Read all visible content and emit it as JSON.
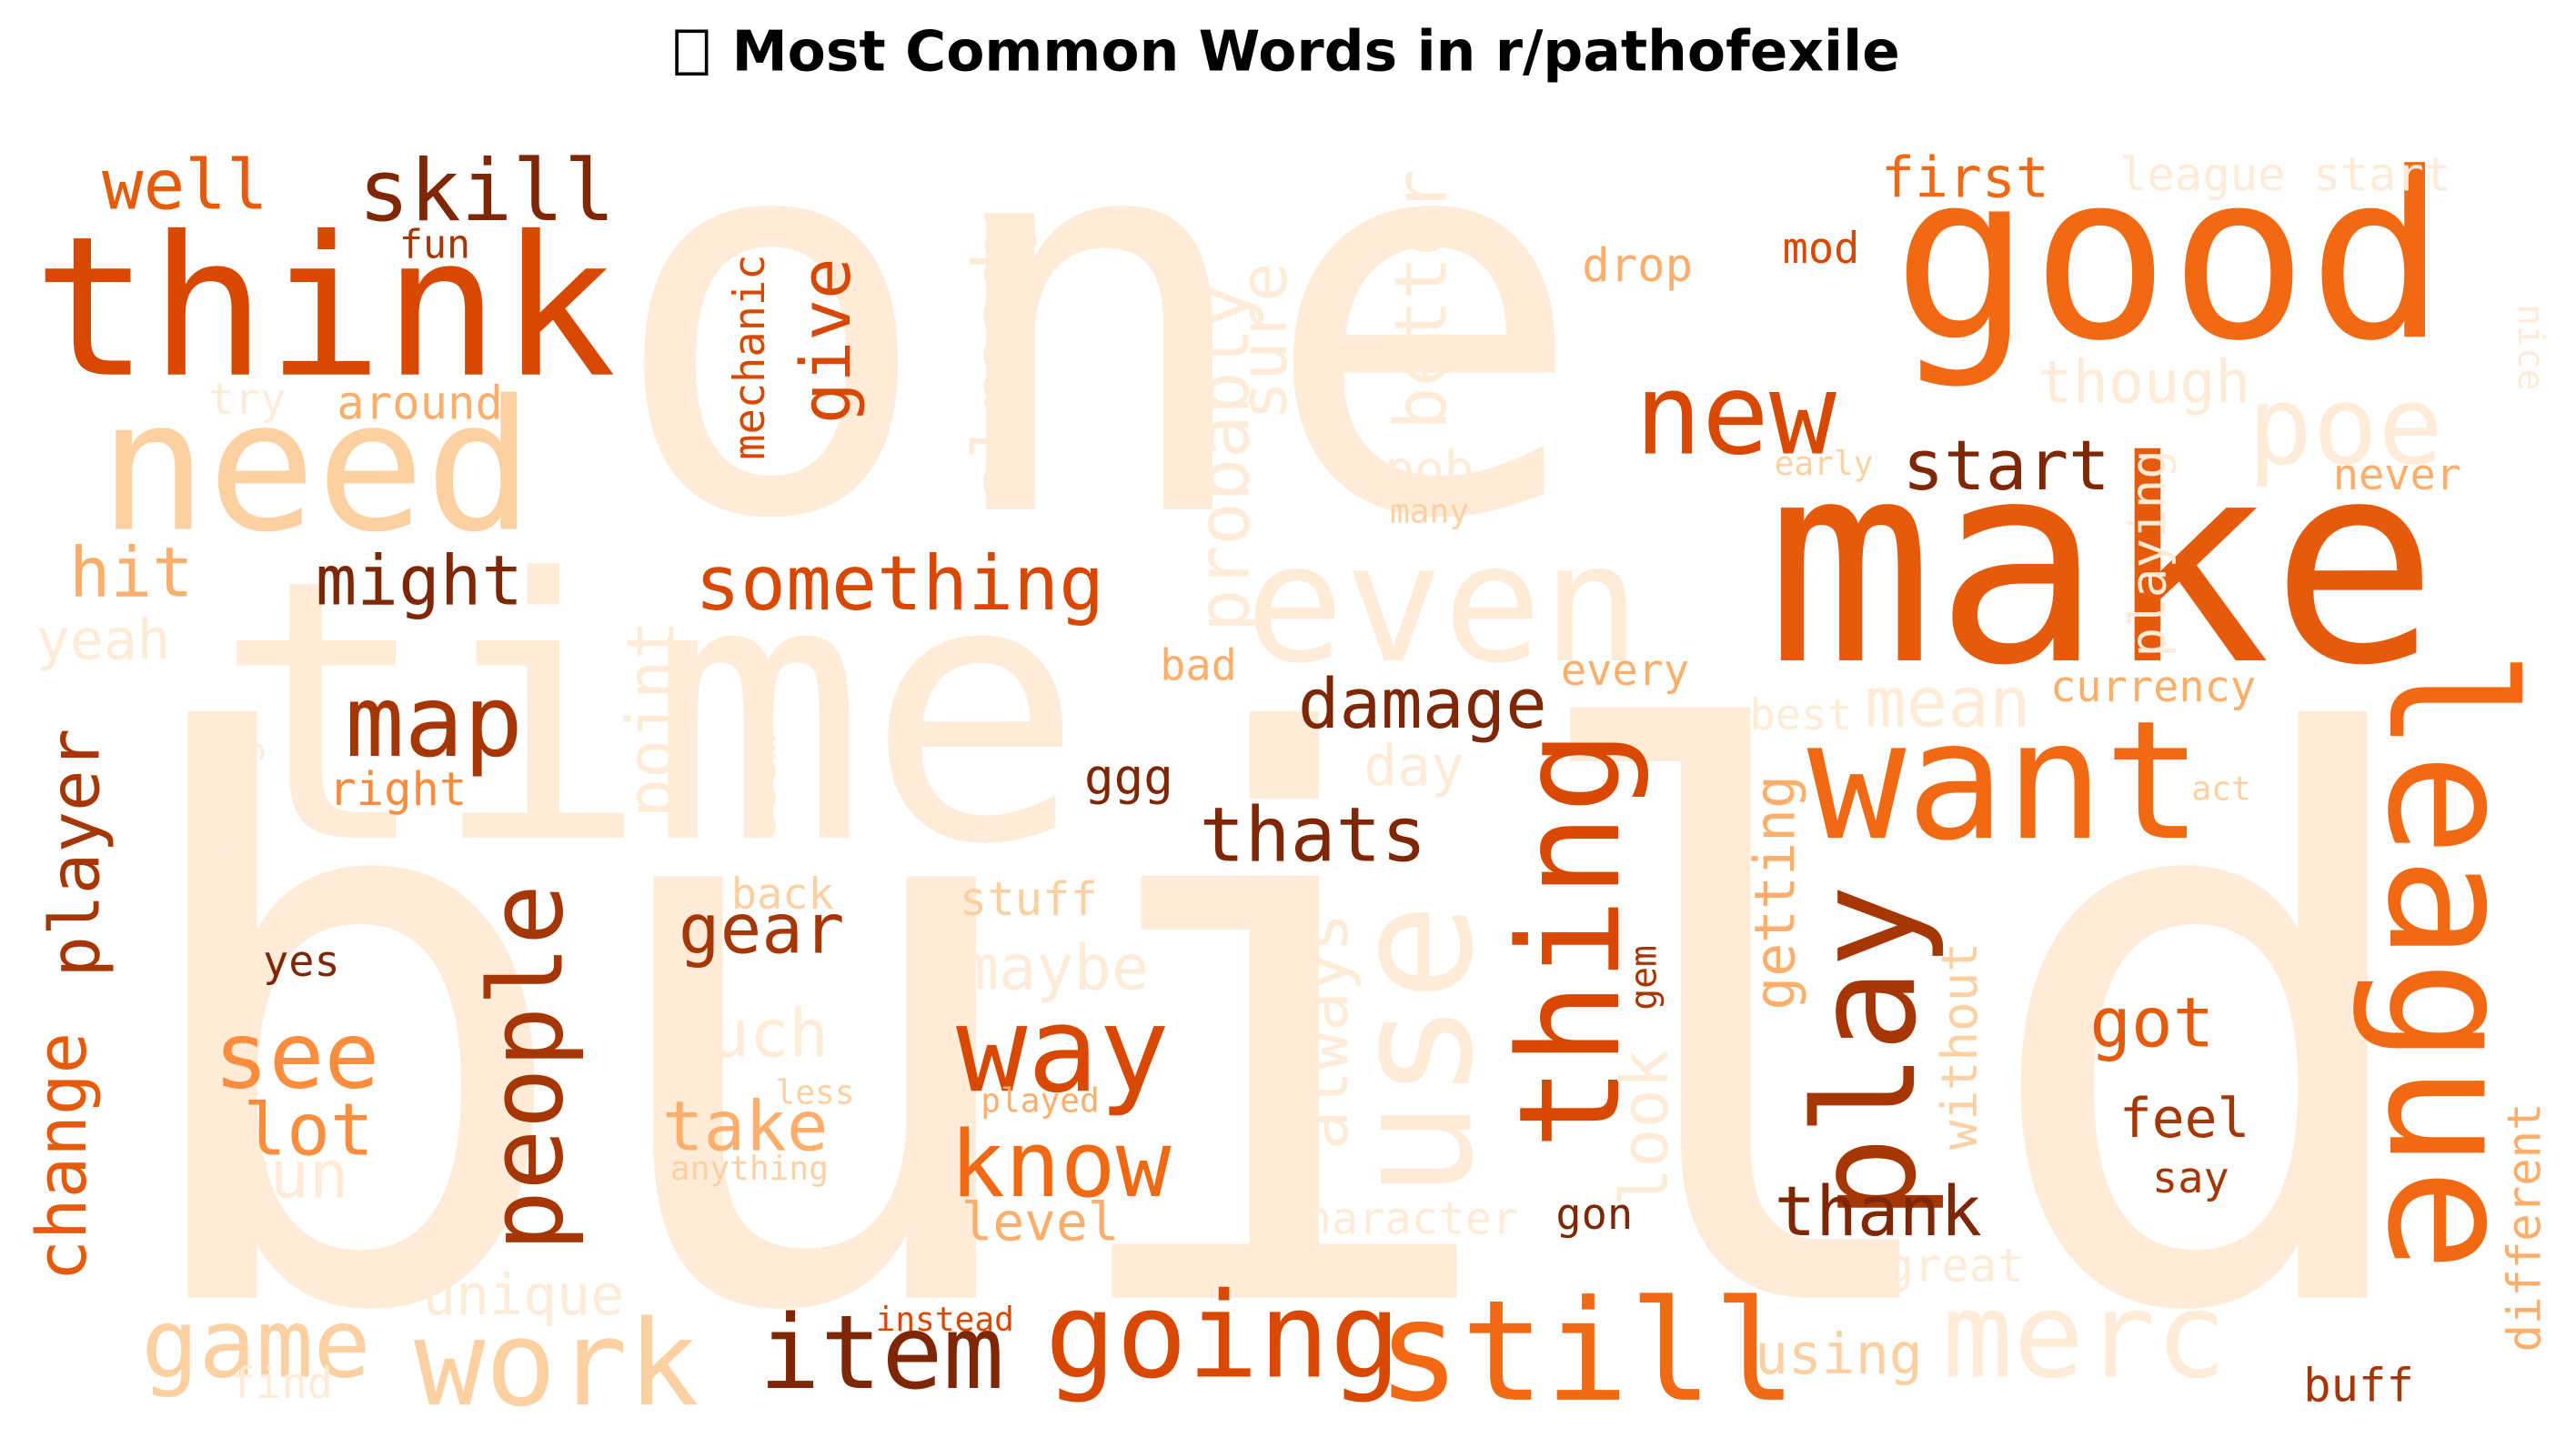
{
  "title": "Most Common Words in r/pathofexile",
  "title_icon": "missing-glyph-icon",
  "colors": {
    "dark_brown": "#7f2704",
    "brown": "#a63603",
    "dark_orange": "#d94801",
    "orange": "#e55a0b",
    "mid_orange": "#f16913",
    "light_orange": "#fd8d3c",
    "peach": "#fdae6b",
    "pale_peach": "#fdd0a2",
    "cream": "#feecd9"
  },
  "words": [
    {
      "text": "one",
      "color": "#feecd9",
      "rot": 0
    },
    {
      "text": "build",
      "color": "#feecd9",
      "rot": 0
    },
    {
      "text": "time",
      "color": "#feecd9",
      "rot": 0
    },
    {
      "text": "make",
      "color": "#e55a0b",
      "rot": 0
    },
    {
      "text": "good",
      "color": "#f16913",
      "rot": 0
    },
    {
      "text": "think",
      "color": "#d94801",
      "rot": 0
    },
    {
      "text": "need",
      "color": "#fdd0a2",
      "rot": 0
    },
    {
      "text": "even",
      "color": "#feecd9",
      "rot": 0
    },
    {
      "text": "use",
      "color": "#feecd9",
      "rot": -90
    },
    {
      "text": "want",
      "color": "#f16913",
      "rot": 0
    },
    {
      "text": "league",
      "color": "#f16913",
      "rot": 90
    },
    {
      "text": "still",
      "color": "#f16913",
      "rot": 0
    },
    {
      "text": "play",
      "color": "#a63603",
      "rot": -90
    },
    {
      "text": "thing",
      "color": "#d94801",
      "rot": -90
    },
    {
      "text": "going",
      "color": "#d94801",
      "rot": 0
    },
    {
      "text": "work",
      "color": "#fdd0a2",
      "rot": 0
    },
    {
      "text": "merc",
      "color": "#feecd9",
      "rot": 0
    },
    {
      "text": "way",
      "color": "#d94801",
      "rot": 0
    },
    {
      "text": "new",
      "color": "#d94801",
      "rot": 0
    },
    {
      "text": "poe",
      "color": "#feecd9",
      "rot": 0
    },
    {
      "text": "people",
      "color": "#a63603",
      "rot": -90
    },
    {
      "text": "item",
      "color": "#7f2704",
      "rot": 0
    },
    {
      "text": "map",
      "color": "#a63603",
      "rot": 0
    },
    {
      "text": "skill",
      "color": "#7f2704",
      "rot": 0
    },
    {
      "text": "game",
      "color": "#fdd0a2",
      "rot": 0
    },
    {
      "text": "know",
      "color": "#f16913",
      "rot": 0
    },
    {
      "text": "see",
      "color": "#fd8d3c",
      "rot": 0
    },
    {
      "text": "something",
      "color": "#d94801",
      "rot": 0
    },
    {
      "text": "thats",
      "color": "#7f2704",
      "rot": 0
    },
    {
      "text": "damage",
      "color": "#7f2704",
      "rot": 0
    },
    {
      "text": "start",
      "color": "#7f2704",
      "rot": 0
    },
    {
      "text": "thank",
      "color": "#7f2704",
      "rot": 0
    },
    {
      "text": "might",
      "color": "#7f2704",
      "rot": 0
    },
    {
      "text": "lot",
      "color": "#fd8d3c",
      "rot": 0
    },
    {
      "text": "hit",
      "color": "#fdae6b",
      "rot": 0
    },
    {
      "text": "well",
      "color": "#e55a0b",
      "rot": 0
    },
    {
      "text": "gear",
      "color": "#a63603",
      "rot": 0
    },
    {
      "text": "take",
      "color": "#fdae6b",
      "rot": 0
    },
    {
      "text": "got",
      "color": "#e55a0b",
      "rot": 0
    },
    {
      "text": "give",
      "color": "#d94801",
      "rot": -90
    },
    {
      "text": "player",
      "color": "#a63603",
      "rot": -90
    },
    {
      "text": "change",
      "color": "#e55a0b",
      "rot": -90
    },
    {
      "text": "probably",
      "color": "#feecd9",
      "rot": -90
    },
    {
      "text": "better",
      "color": "#feecd9",
      "rot": -90
    },
    {
      "text": "already",
      "color": "#feecd9",
      "rot": -90
    },
    {
      "text": "sure",
      "color": "#feecd9",
      "rot": -90
    },
    {
      "text": "point",
      "color": "#feecd9",
      "rot": -90
    },
    {
      "text": "always",
      "color": "#feecd9",
      "rot": -90
    },
    {
      "text": "much",
      "color": "#feecd9",
      "rot": 0
    },
    {
      "text": "maybe",
      "color": "#feecd9",
      "rot": 0
    },
    {
      "text": "run",
      "color": "#feecd9",
      "rot": 0
    },
    {
      "text": "level",
      "color": "#fdae6b",
      "rot": 0
    },
    {
      "text": "feel",
      "color": "#a63603",
      "rot": 0
    },
    {
      "text": "mean",
      "color": "#feecd9",
      "rot": 0
    },
    {
      "text": "first",
      "color": "#f16913",
      "rot": 0
    },
    {
      "text": "though",
      "color": "#feecd9",
      "rot": 0
    },
    {
      "text": "using",
      "color": "#fdd0a2",
      "rot": 0
    },
    {
      "text": "unique",
      "color": "#feecd9",
      "rot": 0
    },
    {
      "text": "character",
      "color": "#feecd9",
      "rot": 0
    },
    {
      "text": "look",
      "color": "#feecd9",
      "rot": -90
    },
    {
      "text": "getting",
      "color": "#fdae6b",
      "rot": -90
    },
    {
      "text": "without",
      "color": "#fdd0a2",
      "rot": -90
    },
    {
      "text": "different",
      "color": "#fdae6b",
      "rot": -90
    },
    {
      "text": "mechanic",
      "color": "#d94801",
      "rot": -90
    },
    {
      "text": "seem",
      "color": "#feecd9",
      "rot": -90
    },
    {
      "text": "enough",
      "color": "#feecd9",
      "rot": -90
    },
    {
      "text": "playing",
      "color": "#feecd9",
      "rot": -90
    },
    {
      "text": "nice",
      "color": "#feecd9",
      "rot": 90
    },
    {
      "text": "gem",
      "color": "#a63603",
      "rot": -90
    },
    {
      "text": "league start",
      "color": "#feecd9",
      "rot": 0
    },
    {
      "text": "currency",
      "color": "#fdae6b",
      "rot": 0
    },
    {
      "text": "yeah",
      "color": "#feecd9",
      "rot": 0
    },
    {
      "text": "around",
      "color": "#fdae6b",
      "rot": 0
    },
    {
      "text": "fun",
      "color": "#a63603",
      "rot": 0
    },
    {
      "text": "drop",
      "color": "#fdae6b",
      "rot": 0
    },
    {
      "text": "mod",
      "color": "#d94801",
      "rot": 0
    },
    {
      "text": "never",
      "color": "#fdae6b",
      "rot": 0
    },
    {
      "text": "try",
      "color": "#feecd9",
      "rot": 0
    },
    {
      "text": "pob",
      "color": "#feecd9",
      "rot": 0
    },
    {
      "text": "early",
      "color": "#fdd0a2",
      "rot": 0
    },
    {
      "text": "many",
      "color": "#fdd0a2",
      "rot": 0
    },
    {
      "text": "bad",
      "color": "#fdae6b",
      "rot": 0
    },
    {
      "text": "every",
      "color": "#fdae6b",
      "rot": 0
    },
    {
      "text": "best",
      "color": "#feecd9",
      "rot": 0
    },
    {
      "text": "day",
      "color": "#feecd9",
      "rot": 0
    },
    {
      "text": "ggg",
      "color": "#7f2704",
      "rot": 0
    },
    {
      "text": "right",
      "color": "#fd8d3c",
      "rot": 0
    },
    {
      "text": "act",
      "color": "#fdd0a2",
      "rot": 0
    },
    {
      "text": "back",
      "color": "#fdd0a2",
      "rot": 0
    },
    {
      "text": "stuff",
      "color": "#fdd0a2",
      "rot": 0
    },
    {
      "text": "yes",
      "color": "#7f2704",
      "rot": 0
    },
    {
      "text": "less",
      "color": "#fdd0a2",
      "rot": 0
    },
    {
      "text": "played",
      "color": "#fdae6b",
      "rot": 0
    },
    {
      "text": "anything",
      "color": "#fdd0a2",
      "rot": 0
    },
    {
      "text": "gon",
      "color": "#7f2704",
      "rot": 0
    },
    {
      "text": "say",
      "color": "#a63603",
      "rot": 0
    },
    {
      "text": "great",
      "color": "#feecd9",
      "rot": 0
    },
    {
      "text": "instead",
      "color": "#d94801",
      "rot": 0
    },
    {
      "text": "find",
      "color": "#feecd9",
      "rot": 0
    },
    {
      "text": "buff",
      "color": "#a63603",
      "rot": 0
    }
  ]
}
